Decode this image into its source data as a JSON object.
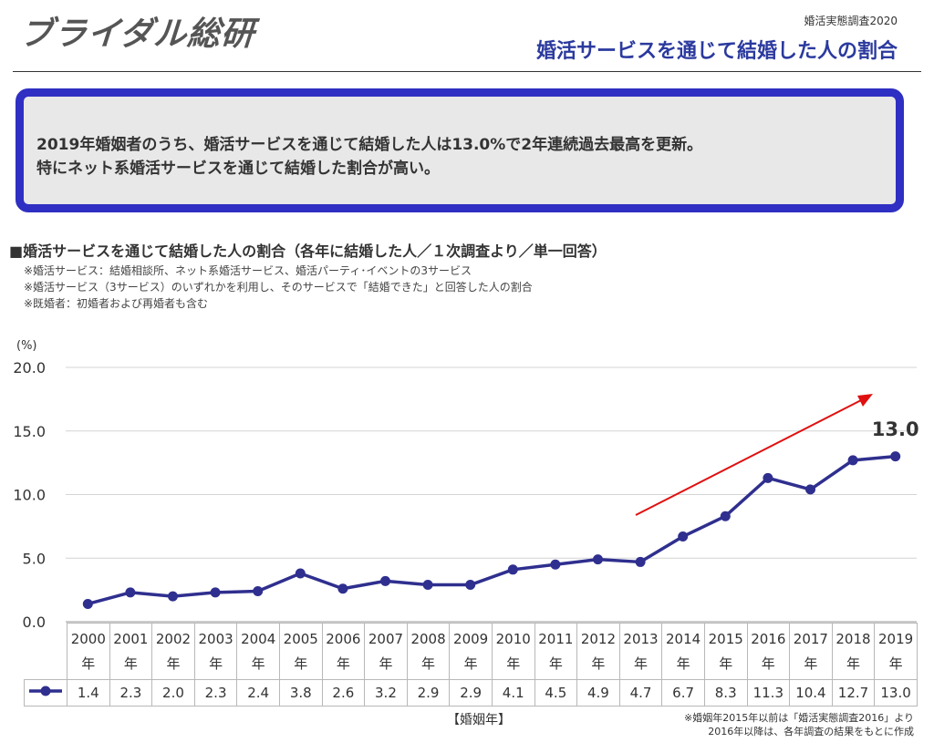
{
  "header": {
    "logo": "ブライダル総研",
    "survey_tag": "婚活実態調査2020",
    "page_title": "婚活サービスを通じて結婚した人の割合"
  },
  "summary": {
    "line1": "2019年婚姻者のうち、婚活サービスを通じて結婚した人は13.0%で2年連続過去最高を更新。",
    "line2": "特にネット系婚活サービスを通じて結婚した割合が高い。"
  },
  "section": {
    "title": "■婚活サービスを通じて結婚した人の割合（各年に結婚した人／１次調査より／単一回答）",
    "notes": [
      "※婚活サービス：結婚相談所、ネット系婚活サービス、婚活パーティ･イベントの3サービス",
      "※婚活サービス（3サービス）のいずれかを利用し、そのサービスで「結婚できた」と回答した人の割合",
      "※既婚者：初婚者および再婚者も含む"
    ]
  },
  "colors": {
    "accent": "#2f2f8f",
    "arrow": "#e01010",
    "box_border": "#2f2fc3",
    "title": "#2b3a9e"
  },
  "chart_data": {
    "type": "line",
    "ylabel": "(%)",
    "xlabel": "【婚姻年】",
    "ylim": [
      0,
      20
    ],
    "yticks": [
      "0.0",
      "5.0",
      "10.0",
      "15.0",
      "20.0"
    ],
    "categories": [
      "2000",
      "2001",
      "2002",
      "2003",
      "2004",
      "2005",
      "2006",
      "2007",
      "2008",
      "2009",
      "2010",
      "2011",
      "2012",
      "2013",
      "2014",
      "2015",
      "2016",
      "2017",
      "2018",
      "2019"
    ],
    "year_suffix": "年",
    "values": [
      1.4,
      2.3,
      2.0,
      2.3,
      2.4,
      3.8,
      2.6,
      3.2,
      2.9,
      2.9,
      4.1,
      4.5,
      4.9,
      4.7,
      6.7,
      8.3,
      11.3,
      10.4,
      12.7,
      13.0
    ],
    "value_labels": [
      "1.4",
      "2.3",
      "2.0",
      "2.3",
      "2.4",
      "3.8",
      "2.6",
      "3.2",
      "2.9",
      "2.9",
      "4.1",
      "4.5",
      "4.9",
      "4.7",
      "6.7",
      "8.3",
      "11.3",
      "10.4",
      "12.7",
      "13.0"
    ],
    "highlight_label": "13.0",
    "grid": true,
    "legend": "table-left"
  },
  "footnote": {
    "line1": "※婚姻年2015年以前は「婚活実態調査2016」より",
    "line2": "2016年以降は、各年調査の結果をもとに作成"
  }
}
